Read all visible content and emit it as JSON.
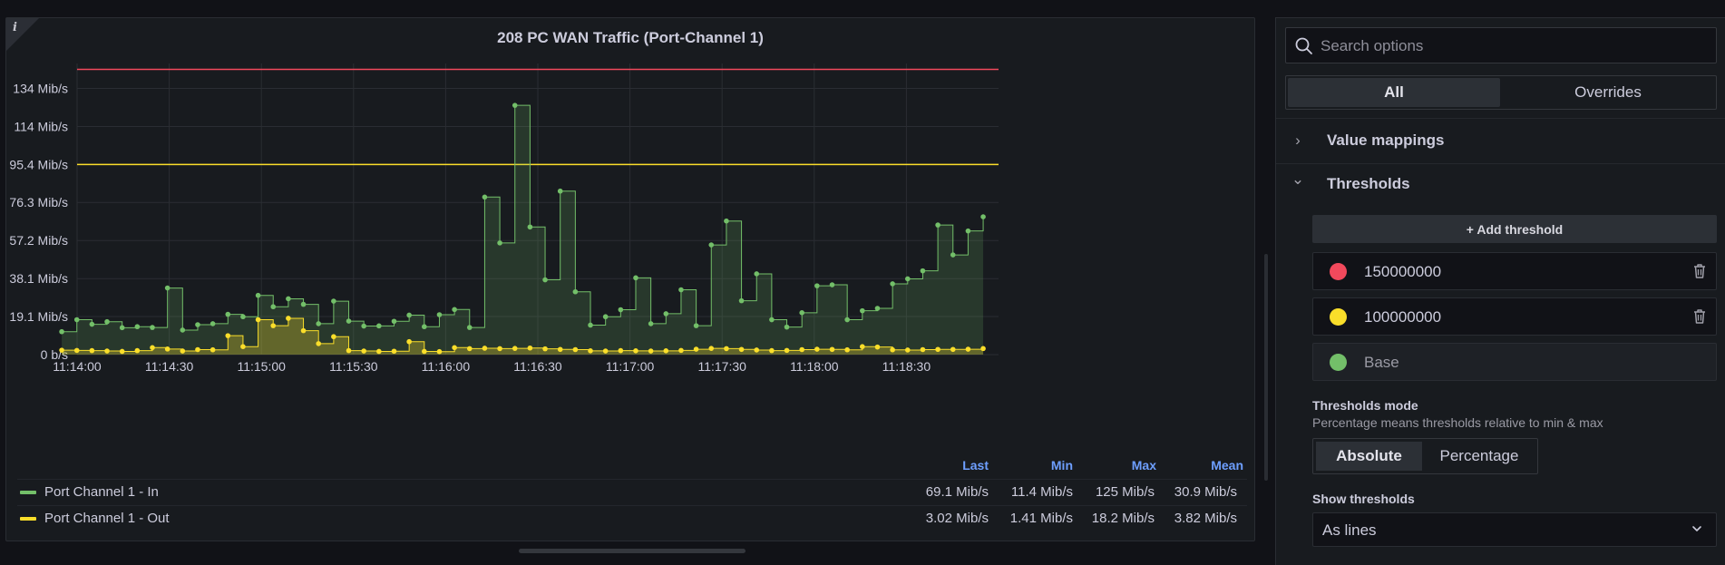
{
  "panel": {
    "title": "208 PC WAN Traffic (Port-Channel 1)",
    "info_icon": "i"
  },
  "chart_data": {
    "type": "area",
    "title": "208 PC WAN Traffic (Port-Channel 1)",
    "x_unit": "time",
    "x_tick_labels": [
      "11:14:00",
      "11:14:30",
      "11:15:00",
      "11:15:30",
      "11:16:00",
      "11:16:30",
      "11:17:00",
      "11:17:30",
      "11:18:00",
      "11:18:30"
    ],
    "y_tick_labels": [
      "0 b/s",
      "19.1 Mib/s",
      "38.1 Mib/s",
      "57.2 Mib/s",
      "76.3 Mib/s",
      "95.4 Mib/s",
      "114 Mib/s",
      "134 Mib/s"
    ],
    "y_tick_values": [
      0,
      19.1,
      38.1,
      57.2,
      76.3,
      95.4,
      114.4,
      133.5
    ],
    "ylim": [
      0,
      146
    ],
    "x_range_seconds_labelled": "11:14:00 – 11:19:00",
    "thresholds_mib": [
      {
        "value": 143.05,
        "color": "#f2495c"
      },
      {
        "value": 95.37,
        "color": "#fade2a"
      }
    ],
    "series": [
      {
        "name": "Port Channel 1 - In",
        "color": "#73bf69",
        "values": [
          11.5,
          17.5,
          15.2,
          16.5,
          13.5,
          14.0,
          13.6,
          33.4,
          12.3,
          15.0,
          15.5,
          20.2,
          19.0,
          29.7,
          24.0,
          28.0,
          25.2,
          15.5,
          26.8,
          16.8,
          14.3,
          14.4,
          16.7,
          19.8,
          14.0,
          20.0,
          22.6,
          13.6,
          79.0,
          56.0,
          125.0,
          64.0,
          37.5,
          82.0,
          31.5,
          14.8,
          19.0,
          22.5,
          38.5,
          15.5,
          20.5,
          32.5,
          14.5,
          55.0,
          67.0,
          27.0,
          40.5,
          17.5,
          13.8,
          21.0,
          34.5,
          35.0,
          17.5,
          22.0,
          23.2,
          35.5,
          38.0,
          42.0,
          65.0,
          50.0,
          62.0,
          69.1
        ]
      },
      {
        "name": "Port Channel 1 - Out",
        "color": "#fade2a",
        "values": [
          2.2,
          2.1,
          2.0,
          1.8,
          1.6,
          2.0,
          3.5,
          2.8,
          1.8,
          2.5,
          2.4,
          9.5,
          4.0,
          17.5,
          14.5,
          18.2,
          12.0,
          5.5,
          9.0,
          2.0,
          1.8,
          1.6,
          1.7,
          6.5,
          1.6,
          1.5,
          3.5,
          3.0,
          3.2,
          3.0,
          3.1,
          3.3,
          2.9,
          2.6,
          2.5,
          1.9,
          1.8,
          2.0,
          1.9,
          1.8,
          1.9,
          2.1,
          2.7,
          3.1,
          3.0,
          2.6,
          2.3,
          2.0,
          2.1,
          2.5,
          2.7,
          2.6,
          2.4,
          4.0,
          3.8,
          2.4,
          2.3,
          2.5,
          2.6,
          2.6,
          2.7,
          3.02
        ]
      }
    ],
    "legend": {
      "placement": "bottom",
      "columns": [
        "Last",
        "Min",
        "Max",
        "Mean"
      ],
      "rows": [
        {
          "name": "Port Channel 1 - In",
          "color": "#73bf69",
          "last": "69.1 Mib/s",
          "min": "11.4 Mib/s",
          "max": "125 Mib/s",
          "mean": "30.9 Mib/s"
        },
        {
          "name": "Port Channel 1 - Out",
          "color": "#fade2a",
          "last": "3.02 Mib/s",
          "min": "1.41 Mib/s",
          "max": "18.2 Mib/s",
          "mean": "3.82 Mib/s"
        }
      ]
    },
    "grid": true
  },
  "options": {
    "search_placeholder": "Search options",
    "tabs": [
      {
        "label": "All",
        "active": true
      },
      {
        "label": "Overrides",
        "active": false
      }
    ],
    "sections": {
      "value_mappings": {
        "label": "Value mappings",
        "chevron": "›"
      },
      "thresholds": {
        "label": "Thresholds",
        "chevron": "⌄"
      }
    },
    "add_threshold_label": "+ Add threshold",
    "thresholds": [
      {
        "value": "150000000",
        "color": "#f2495c"
      },
      {
        "value": "100000000",
        "color": "#fade2a"
      },
      {
        "value": "Base",
        "color": "#73bf69"
      }
    ],
    "thresholds_mode": {
      "label": "Thresholds mode",
      "description": "Percentage means thresholds relative to min & max",
      "options": [
        {
          "label": "Absolute",
          "active": true
        },
        {
          "label": "Percentage",
          "active": false
        }
      ]
    },
    "show_thresholds": {
      "label": "Show thresholds",
      "value": "As lines"
    }
  }
}
